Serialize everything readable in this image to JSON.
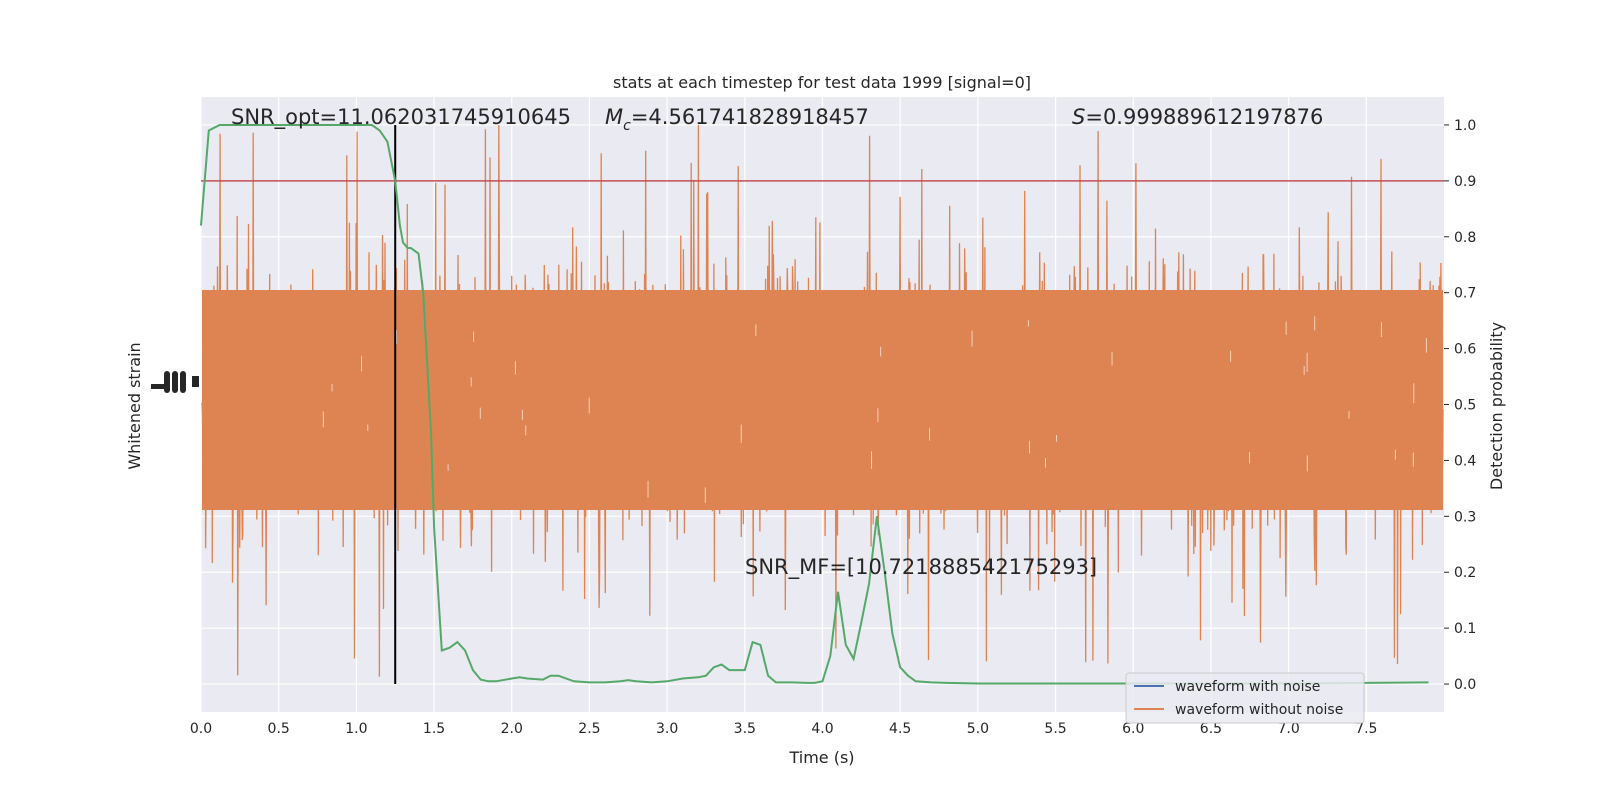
{
  "chart_data": {
    "type": "line",
    "title": "stats at each timestep for test data 1999 [signal=0]",
    "xlabel": "Time (s)",
    "ylabel_left": "Whitened strain",
    "ylabel_right": "Detection probability",
    "xlim": [
      0,
      8
    ],
    "ylim_right": [
      -0.05,
      1.05
    ],
    "x_ticks": [
      "0.0",
      "0.5",
      "1.0",
      "1.5",
      "2.0",
      "2.5",
      "3.0",
      "3.5",
      "4.0",
      "4.5",
      "5.0",
      "5.5",
      "6.0",
      "6.5",
      "7.0",
      "7.5"
    ],
    "y_ticks_right": [
      "0.0",
      "0.1",
      "0.2",
      "0.3",
      "0.4",
      "0.5",
      "0.6",
      "0.7",
      "0.8",
      "0.9",
      "1.0"
    ],
    "grid": true,
    "legend_position": "lower-right",
    "annotations": {
      "snr_opt": "SNR_opt=11.062031745910645",
      "mc_symbol": "M",
      "mc_sub": "c",
      "mc_value": "=4.561741828918457",
      "s_symbol": "S",
      "s_value": "=0.999889612197876",
      "snr_mf": "SNR_MF=[10.721888542175293]"
    },
    "threshold": {
      "y": 0.9,
      "color": "#c44e52"
    },
    "vline": {
      "x": 1.25,
      "color": "#000000"
    },
    "series": [
      {
        "name": "waveform with noise",
        "color": "#4c72b0",
        "kind": "strain"
      },
      {
        "name": "waveform without noise",
        "color": "#dd8452",
        "kind": "strain"
      },
      {
        "color": "#55a868",
        "kind": "probability",
        "x": [
          0.0,
          0.05,
          0.12,
          0.2,
          0.3,
          0.5,
          0.7,
          0.9,
          1.0,
          1.1,
          1.15,
          1.2,
          1.25,
          1.28,
          1.3,
          1.33,
          1.35,
          1.4,
          1.43,
          1.48,
          1.5,
          1.55,
          1.6,
          1.65,
          1.7,
          1.75,
          1.8,
          1.85,
          1.9,
          2.0,
          2.05,
          2.1,
          2.2,
          2.25,
          2.3,
          2.4,
          2.5,
          2.6,
          2.7,
          2.75,
          2.8,
          2.9,
          3.0,
          3.1,
          3.2,
          3.25,
          3.3,
          3.35,
          3.4,
          3.45,
          3.5,
          3.55,
          3.6,
          3.65,
          3.7,
          3.8,
          3.9,
          3.95,
          4.0,
          4.05,
          4.1,
          4.15,
          4.2,
          4.25,
          4.3,
          4.35,
          4.4,
          4.45,
          4.5,
          4.55,
          4.6,
          4.7,
          4.8,
          5.0,
          5.2,
          5.5,
          6.0,
          6.5,
          7.0,
          7.5,
          7.9
        ],
        "y": [
          0.82,
          0.99,
          1.0,
          1.0,
          1.0,
          1.0,
          1.0,
          1.0,
          1.0,
          1.0,
          0.99,
          0.97,
          0.9,
          0.82,
          0.79,
          0.78,
          0.78,
          0.77,
          0.7,
          0.45,
          0.28,
          0.06,
          0.065,
          0.075,
          0.06,
          0.025,
          0.008,
          0.005,
          0.005,
          0.01,
          0.012,
          0.01,
          0.008,
          0.015,
          0.015,
          0.005,
          0.003,
          0.003,
          0.005,
          0.007,
          0.005,
          0.003,
          0.005,
          0.01,
          0.012,
          0.015,
          0.03,
          0.035,
          0.025,
          0.025,
          0.025,
          0.075,
          0.07,
          0.015,
          0.003,
          0.003,
          0.002,
          0.002,
          0.005,
          0.05,
          0.165,
          0.07,
          0.045,
          0.11,
          0.18,
          0.3,
          0.2,
          0.09,
          0.03,
          0.015,
          0.005,
          0.003,
          0.002,
          0.001,
          0.001,
          0.001,
          0.001,
          0.001,
          0.001,
          0.002,
          0.003
        ]
      }
    ]
  }
}
